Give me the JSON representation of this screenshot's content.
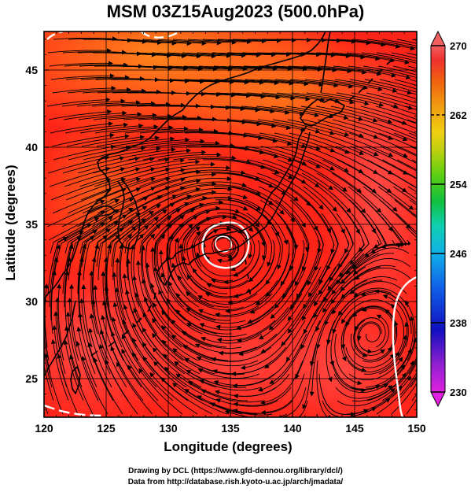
{
  "title": "MSM 03Z15Aug2023 (500.0hPa)",
  "axes": {
    "xlabel": "Longitude (degrees)",
    "ylabel": "Latitude  (degrees)",
    "xlim": [
      120,
      150
    ],
    "ylim": [
      22.5,
      47.5
    ],
    "xticks": [
      "120",
      "125",
      "130",
      "135",
      "140",
      "145",
      "150"
    ],
    "yticks": [
      "25",
      "30",
      "35",
      "40",
      "45"
    ],
    "grid": true
  },
  "colorbar": {
    "range": [
      230,
      270
    ],
    "labels": [
      "270",
      "262",
      "254",
      "246",
      "238",
      "230"
    ],
    "dashed_levels": [
      "262"
    ],
    "colors": [
      "#e020e0",
      "#9020d0",
      "#1010c0",
      "#1060e8",
      "#10b0e8",
      "#10d0b0",
      "#10c040",
      "#60d010",
      "#c0d010",
      "#f0d010",
      "#f0a010",
      "#f06010",
      "#f03030",
      "#f06060"
    ]
  },
  "map": {
    "field_colors": {
      "warm": "#ff2418",
      "orange": "#ff6a18",
      "pinkish": "#ff5050",
      "contour": "#ffffff"
    },
    "features": [
      "coastlines",
      "streamlines",
      "temperature-field",
      "white-contours"
    ]
  },
  "credits": [
    "Drawing by DCL (https://www.gfd-dennou.org/library/dcl/)",
    "Data from http://database.rish.kyoto-u.ac.jp/arch/jmadata/"
  ]
}
